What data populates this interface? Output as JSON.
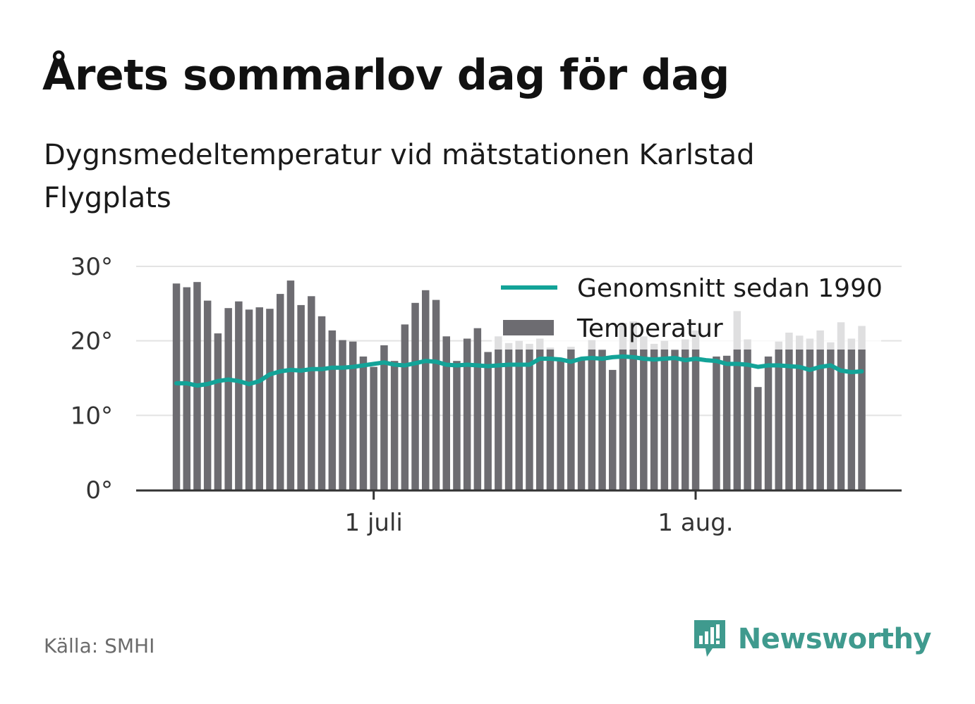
{
  "title": "Årets sommarlov dag för dag",
  "subtitle": "Dygnsmedeltemperatur vid mätstationen Karlstad Flygplats",
  "source": "Källa: SMHI",
  "brand": {
    "name": "Newsworthy",
    "icon": "newsworthy-logo-icon",
    "color": "#3f9a8e"
  },
  "colors": {
    "bars": "#6d6c71",
    "average_line": "#13a398",
    "grid": "#e3e3e3",
    "axis": "#333333"
  },
  "chart_data": {
    "type": "bar",
    "y_unit": "°",
    "ylim": [
      0,
      30
    ],
    "yticks": [
      {
        "value": 0,
        "label": "0°"
      },
      {
        "value": 10,
        "label": "10°"
      },
      {
        "value": 20,
        "label": "20°"
      },
      {
        "value": 30,
        "label": "30°"
      }
    ],
    "xticks": [
      {
        "date": "2023-07-01",
        "label": "1 juli"
      },
      {
        "date": "2023-08-01",
        "label": "1 aug."
      }
    ],
    "grid": true,
    "legend": {
      "position": "top-right",
      "entries": [
        "Genomsnitt sedan 1990",
        "Temperatur"
      ]
    },
    "dates": [
      "2023-06-12",
      "2023-06-13",
      "2023-06-14",
      "2023-06-15",
      "2023-06-16",
      "2023-06-17",
      "2023-06-18",
      "2023-06-19",
      "2023-06-20",
      "2023-06-21",
      "2023-06-22",
      "2023-06-23",
      "2023-06-24",
      "2023-06-25",
      "2023-06-26",
      "2023-06-27",
      "2023-06-28",
      "2023-06-29",
      "2023-06-30",
      "2023-07-01",
      "2023-07-02",
      "2023-07-03",
      "2023-07-04",
      "2023-07-05",
      "2023-07-06",
      "2023-07-07",
      "2023-07-08",
      "2023-07-09",
      "2023-07-10",
      "2023-07-11",
      "2023-07-12",
      "2023-07-13",
      "2023-07-14",
      "2023-07-15",
      "2023-07-16",
      "2023-07-17",
      "2023-07-18",
      "2023-07-19",
      "2023-07-20",
      "2023-07-21",
      "2023-07-22",
      "2023-07-23",
      "2023-07-24",
      "2023-07-25",
      "2023-07-26",
      "2023-07-27",
      "2023-07-28",
      "2023-07-29",
      "2023-07-30",
      "2023-07-31",
      "2023-08-01",
      "2023-08-02",
      "2023-08-03",
      "2023-08-04",
      "2023-08-05",
      "2023-08-06",
      "2023-08-07",
      "2023-08-08",
      "2023-08-09",
      "2023-08-10",
      "2023-08-11",
      "2023-08-12",
      "2023-08-13",
      "2023-08-14",
      "2023-08-15",
      "2023-08-16",
      "2023-08-17"
    ],
    "series": [
      {
        "name": "Temperatur",
        "type": "bar",
        "values": [
          27.7,
          27.2,
          27.9,
          25.4,
          21.0,
          24.4,
          25.3,
          24.2,
          24.5,
          24.3,
          26.3,
          28.1,
          24.8,
          26.0,
          23.3,
          21.4,
          20.1,
          19.9,
          17.9,
          16.5,
          19.4,
          17.3,
          22.2,
          25.1,
          26.8,
          25.5,
          20.6,
          17.3,
          20.3,
          21.7,
          18.5,
          20.6,
          19.7,
          20.0,
          19.6,
          20.3,
          19.1,
          17.5,
          19.2,
          17.6,
          20.1,
          18.8,
          16.1,
          22.4,
          22.6,
          20.6,
          19.6,
          20.0,
          18.8,
          20.2,
          21.4,
          0.0,
          17.9,
          18.0,
          24.0,
          20.2,
          13.8,
          17.9,
          19.9,
          21.1,
          20.7,
          20.3,
          21.4,
          19.8,
          22.5,
          20.3,
          22.0
        ]
      },
      {
        "name": "Genomsnitt sedan 1990",
        "type": "line",
        "values": [
          14.3,
          14.3,
          14.0,
          14.2,
          14.6,
          14.8,
          14.6,
          14.2,
          14.6,
          15.5,
          15.9,
          16.1,
          16.0,
          16.2,
          16.2,
          16.4,
          16.4,
          16.5,
          16.7,
          16.9,
          17.1,
          16.8,
          16.7,
          17.0,
          17.3,
          17.2,
          16.8,
          16.7,
          16.8,
          16.7,
          16.6,
          16.7,
          16.8,
          16.8,
          16.8,
          17.6,
          17.6,
          17.5,
          17.2,
          17.6,
          17.7,
          17.6,
          17.8,
          17.9,
          17.8,
          17.6,
          17.5,
          17.6,
          17.7,
          17.4,
          17.6,
          17.4,
          17.3,
          16.9,
          16.9,
          16.8,
          16.5,
          16.7,
          16.7,
          16.6,
          16.5,
          16.1,
          16.5,
          16.7,
          16.0,
          15.8,
          15.9
        ]
      }
    ]
  }
}
